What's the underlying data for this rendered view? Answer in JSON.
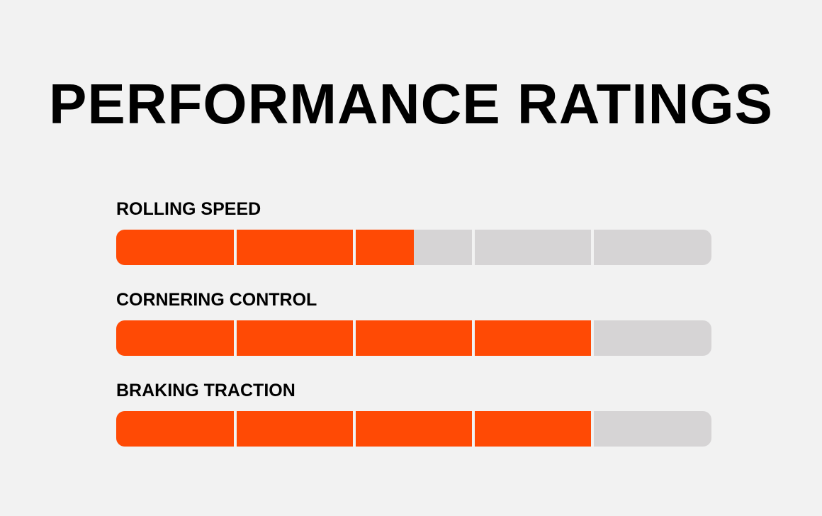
{
  "title": "PERFORMANCE RATINGS",
  "colors": {
    "accent": "#ff4a05",
    "track": "#d6d4d5",
    "background": "#f2f2f2",
    "text": "#000000"
  },
  "chart_data": {
    "type": "bar",
    "title": "PERFORMANCE RATINGS",
    "orientation": "horizontal",
    "scale_max": 5,
    "segments": 5,
    "categories": [
      "ROLLING SPEED",
      "CORNERING CONTROL",
      "BRAKING TRACTION"
    ],
    "values": [
      2.5,
      4,
      4
    ],
    "grid": false,
    "legend": "none"
  }
}
